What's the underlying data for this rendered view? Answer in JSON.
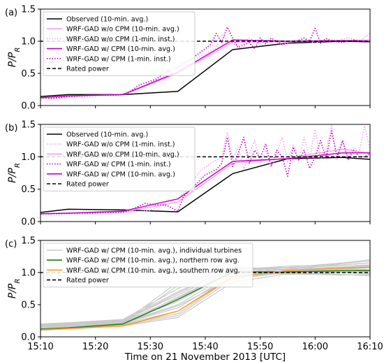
{
  "chart_data": [
    {
      "type": "line",
      "panel_label": "(a)",
      "ylabel_html": "P/P_R",
      "xlim": [
        "15:10",
        "16:10"
      ],
      "ylim": [
        0,
        1.5
      ],
      "yticks": [
        "0.0",
        "0.5",
        "1.0",
        "1.5"
      ],
      "grid": false,
      "legend_position": "upper-left",
      "series": [
        {
          "name": "Observed (10-min. avg.)",
          "color": "#000000",
          "style": "solid",
          "x": [
            "15:10",
            "15:15",
            "15:25",
            "15:35",
            "15:45",
            "15:55",
            "16:05",
            "16:10"
          ],
          "y": [
            0.14,
            0.17,
            0.17,
            0.22,
            0.87,
            0.97,
            1.0,
            0.99
          ]
        },
        {
          "name": "WRF-GAD w/o CPM (10-min. avg.)",
          "color": "#f2a2f2",
          "style": "solid",
          "x": [
            "15:10",
            "15:15",
            "15:25",
            "15:35",
            "15:45",
            "15:55",
            "16:05",
            "16:10"
          ],
          "y": [
            0.12,
            0.15,
            0.17,
            0.5,
            0.99,
            0.99,
            1.01,
            1.02
          ]
        },
        {
          "name": "WRF-GAD w/o CPM (1-min. inst.)",
          "color": "#f2a2f2",
          "style": "dotted",
          "x": [
            "15:10",
            "15:13",
            "15:16",
            "15:19",
            "15:22",
            "15:25",
            "15:28",
            "15:31",
            "15:34",
            "15:36",
            "15:38",
            "15:40",
            "15:42",
            "15:43",
            "15:44",
            "15:46",
            "15:48",
            "15:50",
            "15:52",
            "15:54",
            "15:56",
            "15:58",
            "16:00",
            "16:02",
            "16:04",
            "16:06",
            "16:08",
            "16:10"
          ],
          "y": [
            0.12,
            0.11,
            0.14,
            0.15,
            0.16,
            0.16,
            0.26,
            0.4,
            0.52,
            0.62,
            0.72,
            0.8,
            0.9,
            1.1,
            1.02,
            0.92,
            1.05,
            0.96,
            1.02,
            0.95,
            1.0,
            1.03,
            0.97,
            1.04,
            1.0,
            1.06,
            1.0,
            1.12
          ]
        },
        {
          "name": "WRF-GAD w/ CPM (10-min. avg.)",
          "color": "#c800c8",
          "style": "solid",
          "x": [
            "15:10",
            "15:15",
            "15:25",
            "15:35",
            "15:45",
            "15:55",
            "16:05",
            "16:10"
          ],
          "y": [
            0.12,
            0.15,
            0.17,
            0.52,
            1.02,
            1.0,
            1.01,
            1.0
          ]
        },
        {
          "name": "WRF-GAD w/ CPM (1-min. inst.)",
          "color": "#c800c8",
          "style": "dotted",
          "x": [
            "15:10",
            "15:12",
            "15:15",
            "15:18",
            "15:21",
            "15:24",
            "15:26",
            "15:28",
            "15:31",
            "15:33",
            "15:35",
            "15:37",
            "15:39",
            "15:41",
            "15:42",
            "15:43",
            "15:44",
            "15:45",
            "15:46",
            "15:48",
            "15:49",
            "15:50",
            "15:51",
            "15:52",
            "15:54",
            "15:56",
            "15:58",
            "15:59",
            "16:00",
            "16:01",
            "16:02",
            "16:03",
            "16:05",
            "16:07",
            "16:09",
            "16:10"
          ],
          "y": [
            0.12,
            0.11,
            0.14,
            0.15,
            0.16,
            0.16,
            0.2,
            0.32,
            0.41,
            0.53,
            0.6,
            0.7,
            0.82,
            0.95,
            1.12,
            0.98,
            1.22,
            1.05,
            0.9,
            0.98,
            0.88,
            1.05,
            0.96,
            1.05,
            0.95,
            0.98,
            1.05,
            1.0,
            1.2,
            0.97,
            1.04,
            1.0,
            0.98,
            1.02,
            0.99,
            1.0
          ]
        },
        {
          "name": "Rated power",
          "color": "#000000",
          "style": "dashed",
          "x": [
            "15:10",
            "16:10"
          ],
          "y": [
            1.0,
            1.0
          ]
        }
      ]
    },
    {
      "type": "line",
      "panel_label": "(b)",
      "ylabel_html": "P/P_R",
      "xlim": [
        "15:10",
        "16:10"
      ],
      "ylim": [
        0,
        1.5
      ],
      "yticks": [
        "0.0",
        "0.5",
        "1.0",
        "1.5"
      ],
      "grid": false,
      "legend_position": "upper-left",
      "series": [
        {
          "name": "Observed (10-min. avg.)",
          "color": "#000000",
          "style": "solid",
          "x": [
            "15:10",
            "15:15",
            "15:25",
            "15:35",
            "15:45",
            "15:55",
            "16:05",
            "16:10"
          ],
          "y": [
            0.14,
            0.19,
            0.18,
            0.15,
            0.74,
            0.97,
            0.99,
            0.96
          ]
        },
        {
          "name": "WRF-GAD w/o CPM (1-min. inst.)",
          "color": "#f2a2f2",
          "style": "dotted",
          "x": [
            "15:10",
            "15:15",
            "15:20",
            "15:25",
            "15:30",
            "15:33",
            "15:35",
            "15:37",
            "15:39",
            "15:41",
            "15:43",
            "15:44",
            "15:45",
            "15:46",
            "15:47",
            "15:48",
            "15:49",
            "15:50",
            "15:51",
            "15:52",
            "15:53",
            "15:54",
            "15:55",
            "15:56",
            "15:57",
            "15:58",
            "15:59",
            "16:00",
            "16:01",
            "16:02",
            "16:03",
            "16:04",
            "16:05",
            "16:06",
            "16:07",
            "16:08",
            "16:09",
            "16:10"
          ],
          "y": [
            0.11,
            0.12,
            0.13,
            0.14,
            0.17,
            0.3,
            0.35,
            0.52,
            0.78,
            0.9,
            1.0,
            1.38,
            0.95,
            1.15,
            0.8,
            1.05,
            1.25,
            0.9,
            1.1,
            0.85,
            1.05,
            1.3,
            0.92,
            1.18,
            0.95,
            1.3,
            0.98,
            1.42,
            0.96,
            1.1,
            1.48,
            0.95,
            1.25,
            1.0,
            1.15,
            1.05,
            1.48,
            1.12
          ]
        },
        {
          "name": "WRF-GAD w/o CPM (10-min. avg.)",
          "color": "#f2a2f2",
          "style": "solid",
          "x": [
            "15:10",
            "15:15",
            "15:25",
            "15:35",
            "15:45",
            "15:55",
            "16:05",
            "16:10"
          ],
          "y": [
            0.12,
            0.13,
            0.15,
            0.3,
            0.9,
            0.98,
            1.12,
            1.05
          ]
        },
        {
          "name": "WRF-GAD w/ CPM (1-min. inst.)",
          "color": "#c800c8",
          "style": "dotted",
          "x": [
            "15:10",
            "15:13",
            "15:16",
            "15:19",
            "15:22",
            "15:25",
            "15:27",
            "15:29",
            "15:31",
            "15:33",
            "15:35",
            "15:36",
            "15:38",
            "15:40",
            "15:42",
            "15:43",
            "15:44",
            "15:45",
            "15:46",
            "15:47",
            "15:48",
            "15:49",
            "15:50",
            "15:51",
            "15:52",
            "15:53",
            "15:54",
            "15:55",
            "15:56",
            "15:57",
            "15:58",
            "15:59",
            "16:00",
            "16:01",
            "16:02",
            "16:03",
            "16:04",
            "16:05",
            "16:06",
            "16:07",
            "16:08",
            "16:09",
            "16:10"
          ],
          "y": [
            0.12,
            0.12,
            0.13,
            0.13,
            0.14,
            0.14,
            0.2,
            0.28,
            0.26,
            0.25,
            0.16,
            0.38,
            0.55,
            0.72,
            0.8,
            0.9,
            1.3,
            0.85,
            1.05,
            1.3,
            0.9,
            1.1,
            0.98,
            1.2,
            0.85,
            1.1,
            1.0,
            0.7,
            1.15,
            0.95,
            1.1,
            0.82,
            1.0,
            1.25,
            0.98,
            1.4,
            1.0,
            1.25,
            0.95,
            1.1,
            1.0,
            1.0,
            1.05
          ]
        },
        {
          "name": "WRF-GAD w/ CPM (10-min. avg.)",
          "color": "#c800c8",
          "style": "solid",
          "x": [
            "15:10",
            "15:15",
            "15:25",
            "15:35",
            "15:45",
            "15:55",
            "16:05",
            "16:10"
          ],
          "y": [
            0.12,
            0.13,
            0.16,
            0.35,
            0.93,
            0.97,
            1.06,
            1.06
          ]
        },
        {
          "name": "Rated power",
          "color": "#000000",
          "style": "dashed",
          "x": [
            "15:10",
            "16:10"
          ],
          "y": [
            1.0,
            1.0
          ]
        }
      ]
    },
    {
      "type": "line",
      "panel_label": "(c)",
      "ylabel_html": "P/P_R",
      "xlabel": "Time on 21 November 2013 [UTC]",
      "xlim": [
        "15:10",
        "16:10"
      ],
      "ylim": [
        0,
        1.5
      ],
      "xticks": [
        "15:10",
        "15:20",
        "15:30",
        "15:40",
        "15:50",
        "16:00",
        "16:10"
      ],
      "yticks": [
        "0.0",
        "0.5",
        "1.0",
        "1.5"
      ],
      "grid": false,
      "legend_position": "upper-left",
      "turbines": {
        "color": "#c8c8c8",
        "x": [
          "15:10",
          "15:15",
          "15:25",
          "15:35",
          "15:45",
          "15:55",
          "16:05",
          "16:10"
        ],
        "runs": [
          [
            0.1,
            0.12,
            0.17,
            0.3,
            0.85,
            0.98,
            1.02,
            1.05
          ],
          [
            0.11,
            0.13,
            0.18,
            0.33,
            0.9,
            1.0,
            1.05,
            1.08
          ],
          [
            0.12,
            0.14,
            0.19,
            0.36,
            0.93,
            1.02,
            1.08,
            1.1
          ],
          [
            0.13,
            0.15,
            0.2,
            0.4,
            0.95,
            1.03,
            1.1,
            1.12
          ],
          [
            0.14,
            0.16,
            0.21,
            0.45,
            0.97,
            1.05,
            1.12,
            1.15
          ],
          [
            0.15,
            0.17,
            0.22,
            0.5,
            1.0,
            1.06,
            1.14,
            1.18
          ],
          [
            0.16,
            0.18,
            0.23,
            0.55,
            1.02,
            1.08,
            1.15,
            1.2
          ],
          [
            0.17,
            0.19,
            0.24,
            0.6,
            1.04,
            1.1,
            1.12,
            1.15
          ],
          [
            0.18,
            0.2,
            0.25,
            0.65,
            1.06,
            1.08,
            1.05,
            1.05
          ],
          [
            0.19,
            0.21,
            0.26,
            0.7,
            1.08,
            1.05,
            1.02,
            1.0
          ],
          [
            0.2,
            0.22,
            0.27,
            0.75,
            1.1,
            1.03,
            1.0,
            0.98
          ],
          [
            0.12,
            0.13,
            0.2,
            0.8,
            1.08,
            1.0,
            0.97,
            0.95
          ],
          [
            0.13,
            0.15,
            0.22,
            0.85,
            1.05,
            0.98,
            0.96,
            0.97
          ],
          [
            0.11,
            0.14,
            0.19,
            0.62,
            1.03,
            0.97,
            1.0,
            1.02
          ],
          [
            0.14,
            0.16,
            0.21,
            0.48,
            0.92,
            1.01,
            1.06,
            1.09
          ],
          [
            0.15,
            0.18,
            0.24,
            0.68,
            1.07,
            1.04,
            1.08,
            1.11
          ]
        ]
      },
      "series": [
        {
          "name": "WRF-GAD w/ CPM  (10-min. avg.), individual turbines",
          "color": "#c8c8c8",
          "style": "solid"
        },
        {
          "name": "WRF-GAD w/ CPM (10-min. avg.), northern row avg.",
          "color": "#1a7a1a",
          "style": "solid",
          "x": [
            "15:10",
            "15:15",
            "15:25",
            "15:35",
            "15:45",
            "15:55",
            "16:05",
            "16:10"
          ],
          "y": [
            0.12,
            0.14,
            0.2,
            0.58,
            1.01,
            1.01,
            1.03,
            1.03
          ]
        },
        {
          "name": "WRF-GAD w/ CPM (10-min. avg.), southern row avg.",
          "color": "#ff9a1a",
          "style": "solid",
          "x": [
            "15:10",
            "15:15",
            "15:25",
            "15:35",
            "15:45",
            "15:55",
            "16:05",
            "16:10"
          ],
          "y": [
            0.11,
            0.13,
            0.17,
            0.4,
            0.93,
            1.03,
            1.07,
            1.08
          ]
        },
        {
          "name": "Rated power",
          "color": "#000000",
          "style": "dashed",
          "x": [
            "15:10",
            "16:10"
          ],
          "y": [
            1.0,
            1.0
          ]
        }
      ]
    }
  ]
}
